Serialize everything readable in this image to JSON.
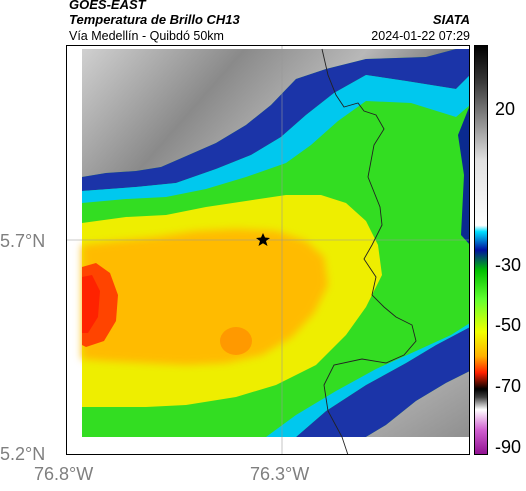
{
  "header": {
    "satellite": "GOES-EAST",
    "product": "Temperatura de Brillo CH13",
    "organization": "SIATA",
    "region": "Vía Medellín - Quibdó 50km",
    "timestamp": "2024-01-22 07:29"
  },
  "axes": {
    "lat_labels": [
      "5.7°N",
      "5.2°N"
    ],
    "lon_labels": [
      "76.8°W",
      "76.3°W"
    ]
  },
  "colorbar": {
    "ticks": [
      "20",
      "-30",
      "-50",
      "-70",
      "-90"
    ]
  },
  "marker": {
    "type": "star",
    "color": "#000000"
  },
  "colors": {
    "land_gray": "#a9a9a9",
    "cloud_blue": "#1b3fb8",
    "cyan": "#00d0f0",
    "green": "#22dd22",
    "yellow": "#f0f000",
    "orange": "#ffb000",
    "red": "#ff3a00"
  }
}
